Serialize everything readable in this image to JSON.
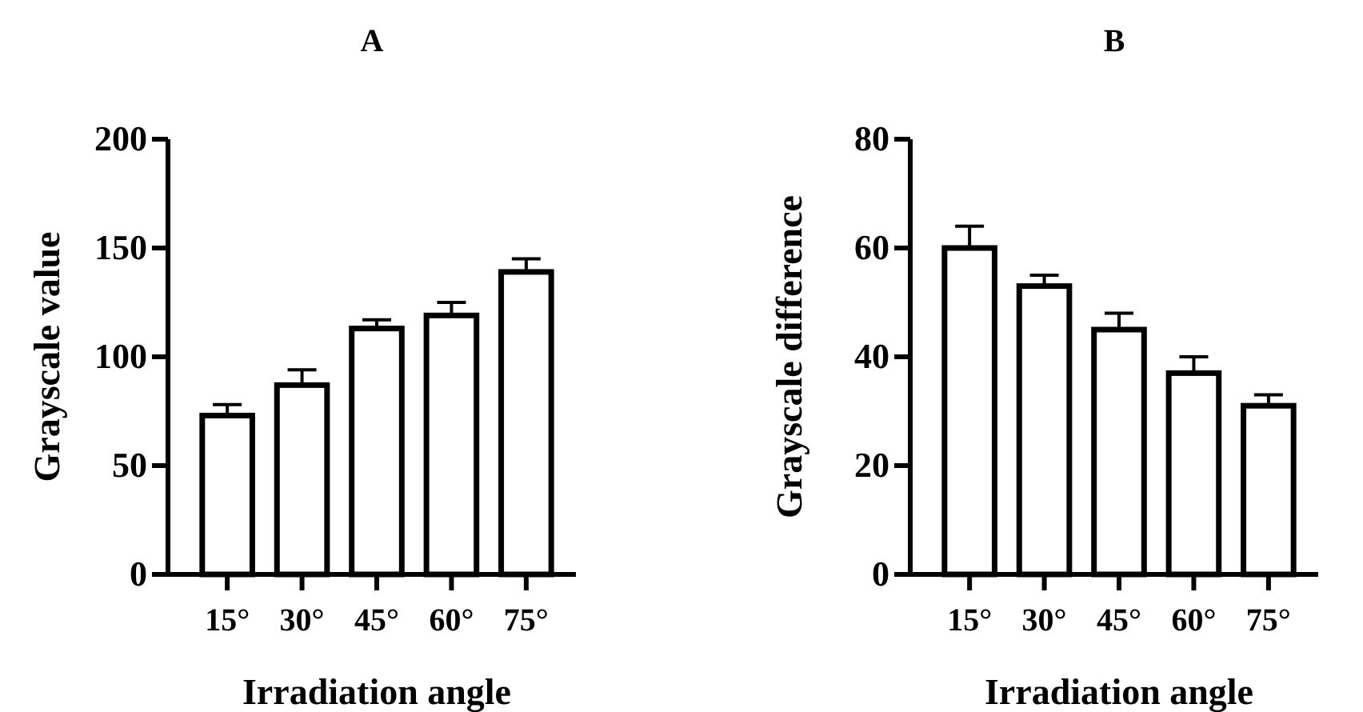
{
  "chart_data": [
    {
      "type": "bar",
      "title": "A",
      "xlabel": "Irradiation angle",
      "ylabel": "Grayscale value",
      "categories": [
        "15°",
        "30°",
        "45°",
        "60°",
        "75°"
      ],
      "values": [
        73,
        87,
        113,
        119,
        139
      ],
      "errors": [
        5,
        7,
        4,
        6,
        6
      ],
      "color": "#ffffff",
      "ylim": [
        0,
        200
      ],
      "yticks": [
        0,
        50,
        100,
        150,
        200
      ],
      "grid": false
    },
    {
      "type": "bar",
      "title": "B",
      "xlabel": "Irradiation angle",
      "ylabel": "Grayscale difference",
      "categories": [
        "15°",
        "30°",
        "45°",
        "60°",
        "75°"
      ],
      "values": [
        60,
        53,
        45,
        37,
        31
      ],
      "errors": [
        4,
        2,
        3,
        3,
        2
      ],
      "color": "#ffffff",
      "ylim": [
        0,
        80
      ],
      "yticks": [
        0,
        20,
        40,
        60,
        80
      ],
      "grid": false
    }
  ]
}
